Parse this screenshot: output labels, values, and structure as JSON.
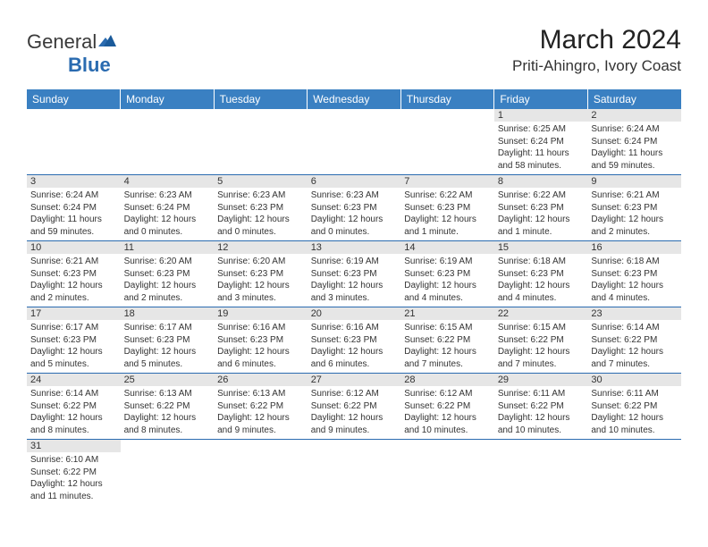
{
  "logo": {
    "text1": "General",
    "text2": "Blue"
  },
  "title": "March 2024",
  "location": "Priti-Ahingro, Ivory Coast",
  "header_bg": "#3a80c2",
  "header_fg": "#ffffff",
  "daynum_bg": "#e6e6e6",
  "row_border": "#2a6bb0",
  "weekdays": [
    "Sunday",
    "Monday",
    "Tuesday",
    "Wednesday",
    "Thursday",
    "Friday",
    "Saturday"
  ],
  "weeks": [
    [
      null,
      null,
      null,
      null,
      null,
      {
        "n": "1",
        "sr": "6:25 AM",
        "ss": "6:24 PM",
        "dl": "11 hours and 58 minutes."
      },
      {
        "n": "2",
        "sr": "6:24 AM",
        "ss": "6:24 PM",
        "dl": "11 hours and 59 minutes."
      }
    ],
    [
      {
        "n": "3",
        "sr": "6:24 AM",
        "ss": "6:24 PM",
        "dl": "11 hours and 59 minutes."
      },
      {
        "n": "4",
        "sr": "6:23 AM",
        "ss": "6:24 PM",
        "dl": "12 hours and 0 minutes."
      },
      {
        "n": "5",
        "sr": "6:23 AM",
        "ss": "6:23 PM",
        "dl": "12 hours and 0 minutes."
      },
      {
        "n": "6",
        "sr": "6:23 AM",
        "ss": "6:23 PM",
        "dl": "12 hours and 0 minutes."
      },
      {
        "n": "7",
        "sr": "6:22 AM",
        "ss": "6:23 PM",
        "dl": "12 hours and 1 minute."
      },
      {
        "n": "8",
        "sr": "6:22 AM",
        "ss": "6:23 PM",
        "dl": "12 hours and 1 minute."
      },
      {
        "n": "9",
        "sr": "6:21 AM",
        "ss": "6:23 PM",
        "dl": "12 hours and 2 minutes."
      }
    ],
    [
      {
        "n": "10",
        "sr": "6:21 AM",
        "ss": "6:23 PM",
        "dl": "12 hours and 2 minutes."
      },
      {
        "n": "11",
        "sr": "6:20 AM",
        "ss": "6:23 PM",
        "dl": "12 hours and 2 minutes."
      },
      {
        "n": "12",
        "sr": "6:20 AM",
        "ss": "6:23 PM",
        "dl": "12 hours and 3 minutes."
      },
      {
        "n": "13",
        "sr": "6:19 AM",
        "ss": "6:23 PM",
        "dl": "12 hours and 3 minutes."
      },
      {
        "n": "14",
        "sr": "6:19 AM",
        "ss": "6:23 PM",
        "dl": "12 hours and 4 minutes."
      },
      {
        "n": "15",
        "sr": "6:18 AM",
        "ss": "6:23 PM",
        "dl": "12 hours and 4 minutes."
      },
      {
        "n": "16",
        "sr": "6:18 AM",
        "ss": "6:23 PM",
        "dl": "12 hours and 4 minutes."
      }
    ],
    [
      {
        "n": "17",
        "sr": "6:17 AM",
        "ss": "6:23 PM",
        "dl": "12 hours and 5 minutes."
      },
      {
        "n": "18",
        "sr": "6:17 AM",
        "ss": "6:23 PM",
        "dl": "12 hours and 5 minutes."
      },
      {
        "n": "19",
        "sr": "6:16 AM",
        "ss": "6:23 PM",
        "dl": "12 hours and 6 minutes."
      },
      {
        "n": "20",
        "sr": "6:16 AM",
        "ss": "6:23 PM",
        "dl": "12 hours and 6 minutes."
      },
      {
        "n": "21",
        "sr": "6:15 AM",
        "ss": "6:22 PM",
        "dl": "12 hours and 7 minutes."
      },
      {
        "n": "22",
        "sr": "6:15 AM",
        "ss": "6:22 PM",
        "dl": "12 hours and 7 minutes."
      },
      {
        "n": "23",
        "sr": "6:14 AM",
        "ss": "6:22 PM",
        "dl": "12 hours and 7 minutes."
      }
    ],
    [
      {
        "n": "24",
        "sr": "6:14 AM",
        "ss": "6:22 PM",
        "dl": "12 hours and 8 minutes."
      },
      {
        "n": "25",
        "sr": "6:13 AM",
        "ss": "6:22 PM",
        "dl": "12 hours and 8 minutes."
      },
      {
        "n": "26",
        "sr": "6:13 AM",
        "ss": "6:22 PM",
        "dl": "12 hours and 9 minutes."
      },
      {
        "n": "27",
        "sr": "6:12 AM",
        "ss": "6:22 PM",
        "dl": "12 hours and 9 minutes."
      },
      {
        "n": "28",
        "sr": "6:12 AM",
        "ss": "6:22 PM",
        "dl": "12 hours and 10 minutes."
      },
      {
        "n": "29",
        "sr": "6:11 AM",
        "ss": "6:22 PM",
        "dl": "12 hours and 10 minutes."
      },
      {
        "n": "30",
        "sr": "6:11 AM",
        "ss": "6:22 PM",
        "dl": "12 hours and 10 minutes."
      }
    ],
    [
      {
        "n": "31",
        "sr": "6:10 AM",
        "ss": "6:22 PM",
        "dl": "12 hours and 11 minutes."
      },
      null,
      null,
      null,
      null,
      null,
      null
    ]
  ],
  "labels": {
    "sunrise": "Sunrise:",
    "sunset": "Sunset:",
    "daylight": "Daylight:"
  }
}
